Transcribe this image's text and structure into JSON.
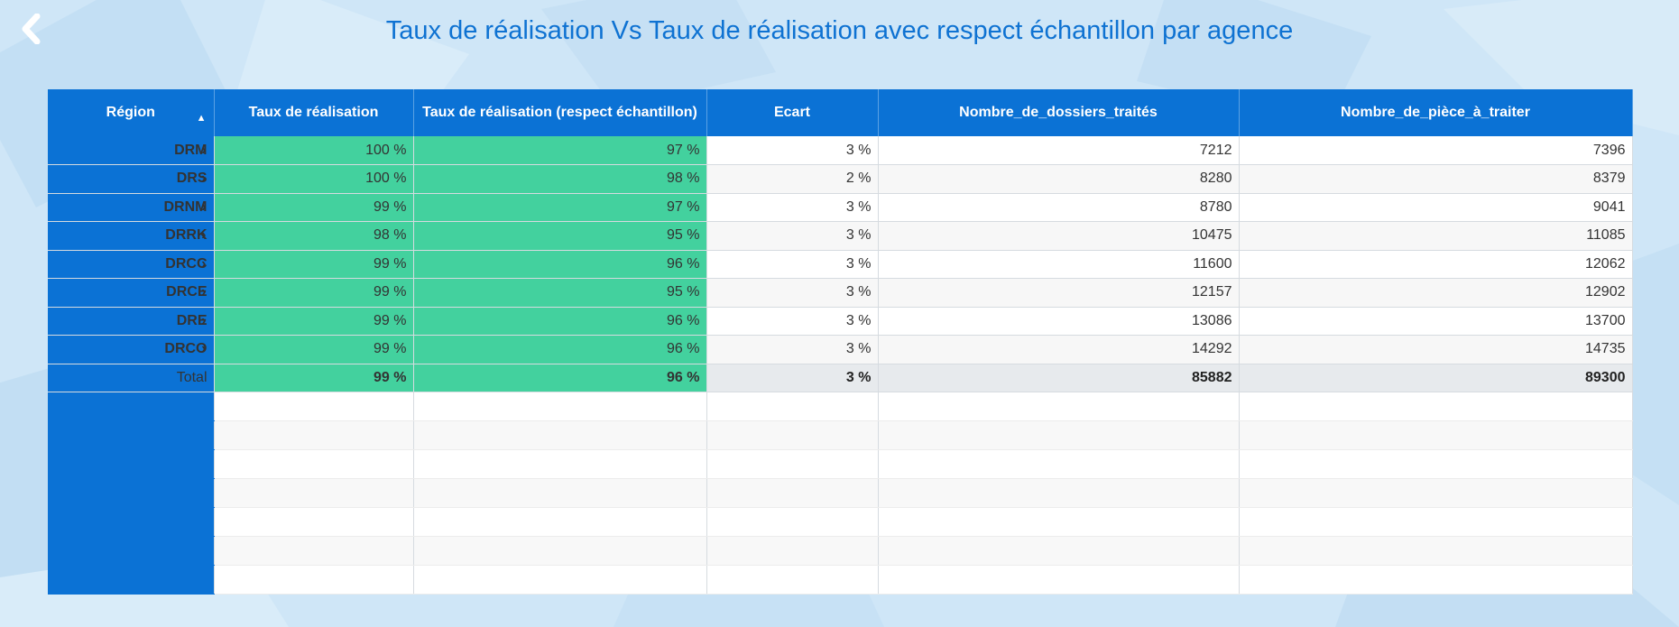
{
  "page": {
    "title": "Taux de réalisation Vs Taux de réalisation avec respect échantillon par agence",
    "colors": {
      "accent": "#0b72d5",
      "title": "#0e72d2",
      "green": "#43d19e",
      "background": "#cfe6f7"
    }
  },
  "icons": {
    "back": "chevron-left-icon",
    "sort": "sort-ascending-icon",
    "drill": "chevron-right-icon"
  },
  "table": {
    "headers": [
      "Région",
      "Taux de réalisation",
      "Taux de réalisation (respect échantillon)",
      "Ecart",
      "Nombre_de_dossiers_traités",
      "Nombre_de_pièce_à_traiter"
    ],
    "sort_glyph": "▲",
    "drill_glyph": "›",
    "rows": [
      {
        "region": "DRM",
        "taux": "100 %",
        "taux_respect": "97 %",
        "ecart": "3 %",
        "dossiers": "7212",
        "pieces": "7396"
      },
      {
        "region": "DRS",
        "taux": "100 %",
        "taux_respect": "98 %",
        "ecart": "2 %",
        "dossiers": "8280",
        "pieces": "8379"
      },
      {
        "region": "DRNM",
        "taux": "99 %",
        "taux_respect": "97 %",
        "ecart": "3 %",
        "dossiers": "8780",
        "pieces": "9041"
      },
      {
        "region": "DRRK",
        "taux": "98 %",
        "taux_respect": "95 %",
        "ecart": "3 %",
        "dossiers": "10475",
        "pieces": "11085"
      },
      {
        "region": "DRCC",
        "taux": "99 %",
        "taux_respect": "96 %",
        "ecart": "3 %",
        "dossiers": "11600",
        "pieces": "12062"
      },
      {
        "region": "DRCE",
        "taux": "99 %",
        "taux_respect": "95 %",
        "ecart": "3 %",
        "dossiers": "12157",
        "pieces": "12902"
      },
      {
        "region": "DRE",
        "taux": "99 %",
        "taux_respect": "96 %",
        "ecart": "3 %",
        "dossiers": "13086",
        "pieces": "13700"
      },
      {
        "region": "DRCO",
        "taux": "99 %",
        "taux_respect": "96 %",
        "ecart": "3 %",
        "dossiers": "14292",
        "pieces": "14735"
      }
    ],
    "total": {
      "label": "Total",
      "taux": "99 %",
      "taux_respect": "96 %",
      "ecart": "3 %",
      "dossiers": "85882",
      "pieces": "89300"
    }
  }
}
